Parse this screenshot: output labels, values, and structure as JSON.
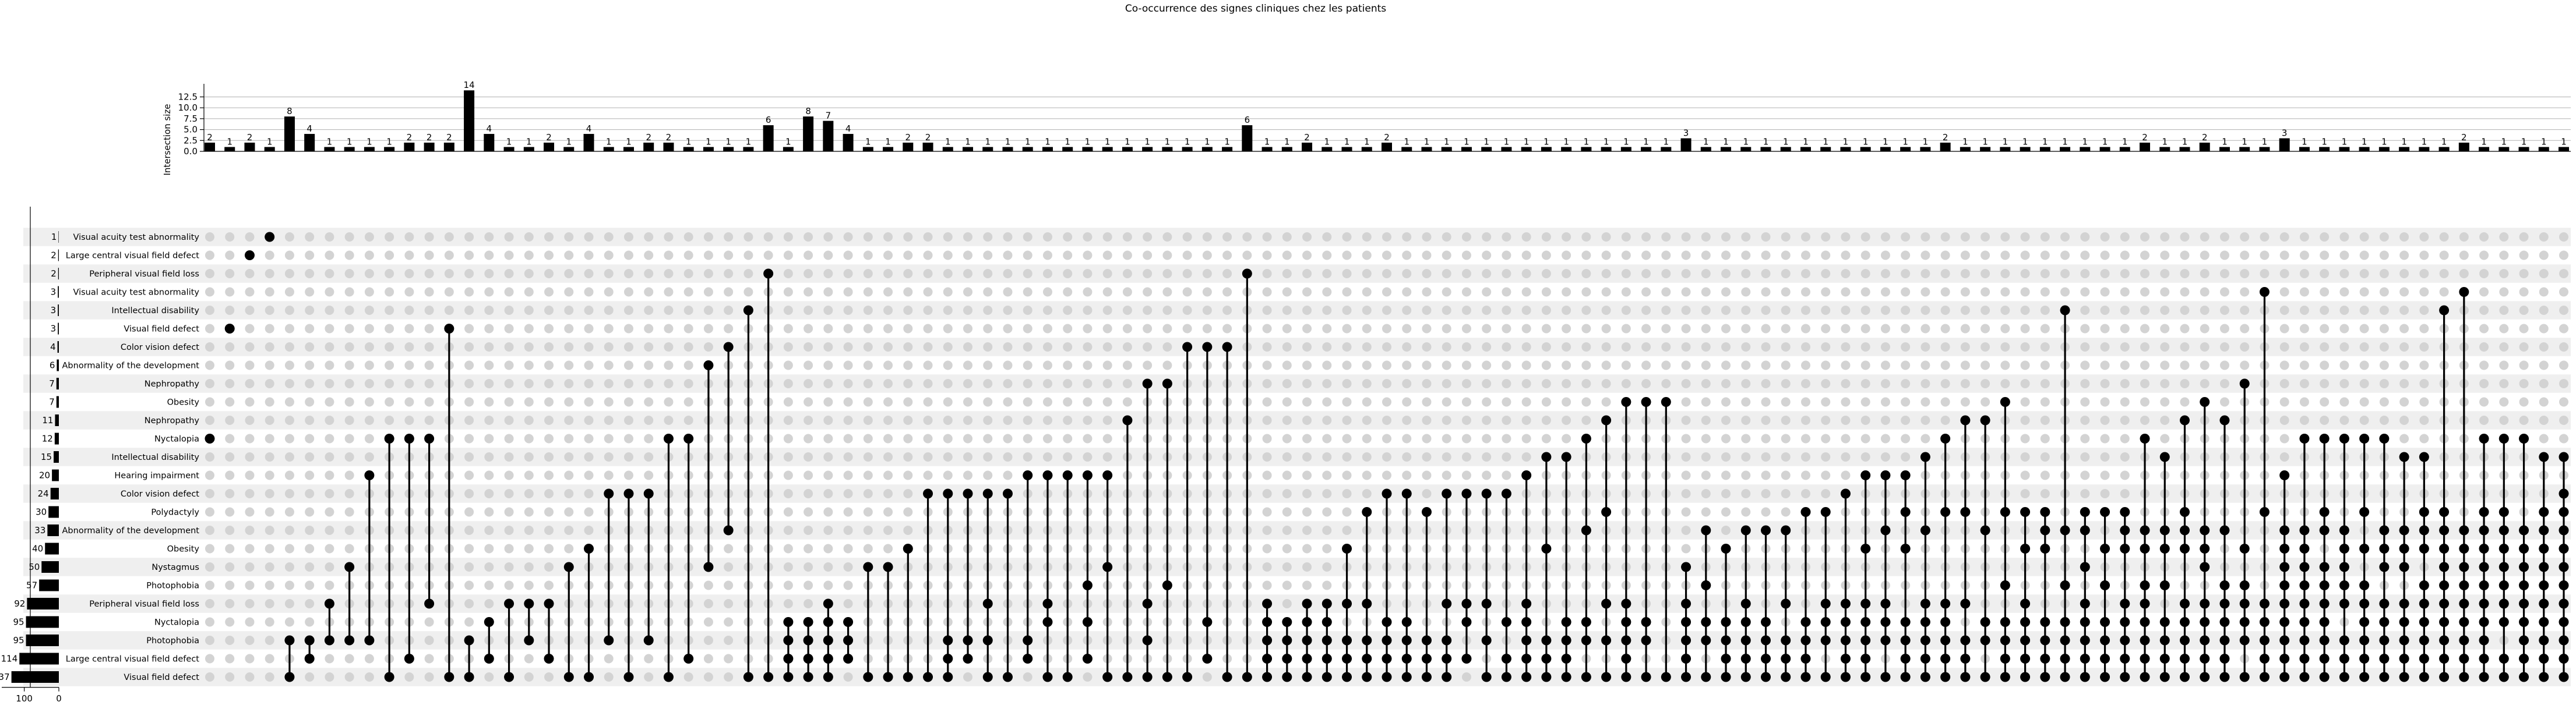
{
  "chart_data": {
    "type": "upset",
    "title": "Co-occurrence des signes cliniques chez les patients",
    "ylabel": "Intersection size",
    "ylim": [
      0,
      14.7
    ],
    "yticks": [
      0.0,
      2.5,
      5.0,
      7.5,
      10.0,
      12.5
    ],
    "ytick_labels": [
      "0.0",
      "2.5",
      "5.0",
      "7.5",
      "10.0",
      "12.5"
    ],
    "set_size_ticks": [
      "100",
      "0"
    ],
    "grid": true,
    "sets": [
      {
        "name": "Visual acuity test abnormality",
        "size": 1
      },
      {
        "name": "Large central visual field defect",
        "size": 2
      },
      {
        "name": "Peripheral visual field loss",
        "size": 2
      },
      {
        "name": "Visual acuity test abnormality",
        "size": 3
      },
      {
        "name": "Intellectual disability",
        "size": 3
      },
      {
        "name": "Visual field defect",
        "size": 3
      },
      {
        "name": "Color vision defect",
        "size": 4
      },
      {
        "name": "Abnormality of the development",
        "size": 6
      },
      {
        "name": "Nephropathy",
        "size": 7
      },
      {
        "name": "Obesity",
        "size": 7
      },
      {
        "name": "Nephropathy",
        "size": 11
      },
      {
        "name": "Nyctalopia",
        "size": 12
      },
      {
        "name": "Intellectual disability",
        "size": 15
      },
      {
        "name": "Hearing impairment",
        "size": 20
      },
      {
        "name": "Color vision defect",
        "size": 24
      },
      {
        "name": "Polydactyly",
        "size": 30
      },
      {
        "name": "Abnormality of the development",
        "size": 33
      },
      {
        "name": "Obesity",
        "size": 40
      },
      {
        "name": "Nystagmus",
        "size": 50
      },
      {
        "name": "Photophobia",
        "size": 57
      },
      {
        "name": "Peripheral visual field loss",
        "size": 92
      },
      {
        "name": "Nyctalopia",
        "size": 95
      },
      {
        "name": "Photophobia",
        "size": 95
      },
      {
        "name": "Large central visual field defect",
        "size": 114
      },
      {
        "name": "Visual field defect",
        "size": 137
      }
    ],
    "intersections": [
      {
        "size": 2,
        "sets": [
          11
        ]
      },
      {
        "size": 1,
        "sets": [
          5
        ]
      },
      {
        "size": 2,
        "sets": [
          1
        ]
      },
      {
        "size": 1,
        "sets": [
          0
        ]
      },
      {
        "size": 8,
        "sets": [
          22,
          24
        ]
      },
      {
        "size": 4,
        "sets": [
          22,
          23
        ]
      },
      {
        "size": 1,
        "sets": [
          20,
          22
        ]
      },
      {
        "size": 1,
        "sets": [
          18,
          22
        ]
      },
      {
        "size": 1,
        "sets": [
          13,
          22
        ]
      },
      {
        "size": 1,
        "sets": [
          11,
          24
        ]
      },
      {
        "size": 2,
        "sets": [
          11,
          23
        ]
      },
      {
        "size": 2,
        "sets": [
          11,
          20
        ]
      },
      {
        "size": 2,
        "sets": [
          5,
          24
        ]
      },
      {
        "size": 14,
        "sets": [
          22,
          24
        ]
      },
      {
        "size": 4,
        "sets": [
          21,
          23
        ]
      },
      {
        "size": 1,
        "sets": [
          20,
          24
        ]
      },
      {
        "size": 1,
        "sets": [
          20,
          22
        ]
      },
      {
        "size": 2,
        "sets": [
          20,
          23
        ]
      },
      {
        "size": 1,
        "sets": [
          18,
          24
        ]
      },
      {
        "size": 4,
        "sets": [
          17,
          24
        ]
      },
      {
        "size": 1,
        "sets": [
          14,
          22
        ]
      },
      {
        "size": 1,
        "sets": [
          14,
          24
        ]
      },
      {
        "size": 2,
        "sets": [
          14,
          22
        ]
      },
      {
        "size": 2,
        "sets": [
          11,
          24
        ]
      },
      {
        "size": 1,
        "sets": [
          11,
          23
        ]
      },
      {
        "size": 1,
        "sets": [
          7,
          18
        ]
      },
      {
        "size": 1,
        "sets": [
          6,
          16
        ]
      },
      {
        "size": 1,
        "sets": [
          4,
          24
        ]
      },
      {
        "size": 6,
        "sets": [
          2,
          24
        ]
      },
      {
        "size": 1,
        "sets": [
          21,
          22,
          23,
          24
        ]
      },
      {
        "size": 8,
        "sets": [
          21,
          22,
          23,
          24
        ]
      },
      {
        "size": 7,
        "sets": [
          20,
          21,
          22,
          23,
          24
        ]
      },
      {
        "size": 4,
        "sets": [
          21,
          22,
          23
        ]
      },
      {
        "size": 1,
        "sets": [
          18,
          24
        ]
      },
      {
        "size": 1,
        "sets": [
          18,
          24
        ]
      },
      {
        "size": 2,
        "sets": [
          17,
          24
        ]
      },
      {
        "size": 2,
        "sets": [
          14,
          24
        ]
      },
      {
        "size": 1,
        "sets": [
          14,
          22,
          23,
          24
        ]
      },
      {
        "size": 1,
        "sets": [
          14,
          22,
          23
        ]
      },
      {
        "size": 1,
        "sets": [
          14,
          20,
          22,
          24
        ]
      },
      {
        "size": 1,
        "sets": [
          14,
          24
        ]
      },
      {
        "size": 1,
        "sets": [
          13,
          22,
          23
        ]
      },
      {
        "size": 1,
        "sets": [
          13,
          20,
          21,
          24
        ]
      },
      {
        "size": 1,
        "sets": [
          13,
          24
        ]
      },
      {
        "size": 1,
        "sets": [
          13,
          19,
          21,
          23
        ]
      },
      {
        "size": 1,
        "sets": [
          13,
          18,
          24
        ]
      },
      {
        "size": 1,
        "sets": [
          10,
          24
        ]
      },
      {
        "size": 1,
        "sets": [
          8,
          20,
          22,
          24
        ]
      },
      {
        "size": 1,
        "sets": [
          8,
          19,
          24
        ]
      },
      {
        "size": 1,
        "sets": [
          6,
          24
        ]
      },
      {
        "size": 1,
        "sets": [
          6,
          21,
          23
        ]
      },
      {
        "size": 1,
        "sets": [
          6,
          24
        ]
      },
      {
        "size": 6,
        "sets": [
          2,
          24
        ]
      },
      {
        "size": 1,
        "sets": [
          20,
          21,
          22,
          23,
          24
        ]
      },
      {
        "size": 1,
        "sets": [
          21,
          22,
          23,
          24
        ]
      },
      {
        "size": 2,
        "sets": [
          20,
          21,
          22,
          23,
          24
        ]
      },
      {
        "size": 1,
        "sets": [
          20,
          21,
          22,
          23,
          24
        ]
      },
      {
        "size": 1,
        "sets": [
          17,
          20,
          22,
          23,
          24
        ]
      },
      {
        "size": 1,
        "sets": [
          15,
          20,
          22,
          23,
          24
        ]
      },
      {
        "size": 2,
        "sets": [
          14,
          21,
          22,
          23,
          24
        ]
      },
      {
        "size": 1,
        "sets": [
          14,
          21,
          22,
          23,
          24
        ]
      },
      {
        "size": 1,
        "sets": [
          15,
          22,
          23,
          24
        ]
      },
      {
        "size": 1,
        "sets": [
          14,
          20,
          22,
          23,
          24
        ]
      },
      {
        "size": 1,
        "sets": [
          14,
          20,
          21,
          23
        ]
      },
      {
        "size": 1,
        "sets": [
          14,
          20,
          22,
          24
        ]
      },
      {
        "size": 1,
        "sets": [
          14,
          21,
          23,
          24
        ]
      },
      {
        "size": 1,
        "sets": [
          13,
          20,
          21,
          22,
          23,
          24
        ]
      },
      {
        "size": 1,
        "sets": [
          12,
          17,
          22,
          23,
          24
        ]
      },
      {
        "size": 1,
        "sets": [
          12,
          21,
          22,
          23,
          24
        ]
      },
      {
        "size": 1,
        "sets": [
          11,
          16,
          21,
          22,
          24
        ]
      },
      {
        "size": 1,
        "sets": [
          10,
          15,
          20,
          22,
          24
        ]
      },
      {
        "size": 1,
        "sets": [
          9,
          20,
          21,
          22,
          23,
          24
        ]
      },
      {
        "size": 1,
        "sets": [
          9,
          21,
          22,
          24
        ]
      },
      {
        "size": 1,
        "sets": [
          9,
          24
        ]
      },
      {
        "size": 3,
        "sets": [
          18,
          20,
          21,
          22,
          23,
          24
        ]
      },
      {
        "size": 1,
        "sets": [
          16,
          19,
          21,
          22,
          24
        ]
      },
      {
        "size": 1,
        "sets": [
          17,
          21,
          22,
          23,
          24
        ]
      },
      {
        "size": 1,
        "sets": [
          16,
          20,
          21,
          22,
          23,
          24
        ]
      },
      {
        "size": 1,
        "sets": [
          16,
          21,
          22,
          23,
          24
        ]
      },
      {
        "size": 1,
        "sets": [
          16,
          20,
          22,
          23,
          24
        ]
      },
      {
        "size": 1,
        "sets": [
          15,
          21,
          22,
          23,
          24
        ]
      },
      {
        "size": 1,
        "sets": [
          15,
          20,
          21,
          22,
          24
        ]
      },
      {
        "size": 1,
        "sets": [
          14,
          20,
          21,
          22,
          23,
          24
        ]
      },
      {
        "size": 1,
        "sets": [
          13,
          17,
          20,
          21,
          22,
          23,
          24
        ]
      },
      {
        "size": 1,
        "sets": [
          13,
          16,
          20,
          21,
          22,
          24
        ]
      },
      {
        "size": 1,
        "sets": [
          13,
          15,
          17,
          21,
          22,
          23,
          24
        ]
      },
      {
        "size": 1,
        "sets": [
          12,
          16,
          20,
          21,
          22,
          23,
          24
        ]
      },
      {
        "size": 2,
        "sets": [
          11,
          15,
          20,
          21,
          22,
          23,
          24
        ]
      },
      {
        "size": 1,
        "sets": [
          10,
          15,
          20,
          22,
          23,
          24
        ]
      },
      {
        "size": 1,
        "sets": [
          10,
          16,
          21,
          22,
          24
        ]
      },
      {
        "size": 1,
        "sets": [
          9,
          15,
          19,
          21,
          22,
          23,
          24
        ]
      },
      {
        "size": 1,
        "sets": [
          15,
          17,
          20,
          21,
          22,
          23,
          24
        ]
      },
      {
        "size": 1,
        "sets": [
          15,
          16,
          17,
          21,
          22,
          23,
          24
        ]
      },
      {
        "size": 1,
        "sets": [
          4,
          16,
          19,
          21,
          22,
          23,
          24
        ]
      },
      {
        "size": 1,
        "sets": [
          15,
          16,
          18,
          20,
          21,
          22,
          23,
          24
        ]
      },
      {
        "size": 1,
        "sets": [
          15,
          17,
          19,
          21,
          22,
          23,
          24
        ]
      },
      {
        "size": 1,
        "sets": [
          15,
          16,
          17,
          20,
          21,
          22,
          23,
          24
        ]
      },
      {
        "size": 2,
        "sets": [
          11,
          16,
          17,
          19,
          20,
          21,
          22,
          23,
          24
        ]
      },
      {
        "size": 1,
        "sets": [
          12,
          16,
          17,
          19,
          21,
          22,
          23,
          24
        ]
      },
      {
        "size": 1,
        "sets": [
          10,
          15,
          16,
          17,
          20,
          21,
          22,
          23,
          24
        ]
      },
      {
        "size": 2,
        "sets": [
          9,
          16,
          17,
          18,
          20,
          21,
          22,
          23,
          24
        ]
      },
      {
        "size": 1,
        "sets": [
          10,
          16,
          19,
          20,
          21,
          22,
          23,
          24
        ]
      },
      {
        "size": 1,
        "sets": [
          8,
          17,
          19,
          20,
          21,
          22,
          24
        ]
      },
      {
        "size": 1,
        "sets": [
          3,
          15,
          20,
          21,
          22,
          23,
          24
        ]
      },
      {
        "size": 3,
        "sets": [
          13,
          16,
          17,
          18,
          19,
          20,
          21,
          22,
          23,
          24
        ]
      },
      {
        "size": 1,
        "sets": [
          11,
          16,
          17,
          18,
          19,
          20,
          21,
          22,
          23,
          24
        ]
      },
      {
        "size": 1,
        "sets": [
          11,
          15,
          16,
          18,
          19,
          20,
          21,
          22,
          23,
          24
        ]
      },
      {
        "size": 1,
        "sets": [
          11,
          16,
          17,
          18,
          19,
          20,
          22,
          23,
          24
        ]
      },
      {
        "size": 1,
        "sets": [
          11,
          15,
          17,
          19,
          20,
          21,
          22,
          23,
          24
        ]
      },
      {
        "size": 1,
        "sets": [
          11,
          16,
          17,
          18,
          20,
          21,
          22,
          23,
          24
        ]
      },
      {
        "size": 1,
        "sets": [
          12,
          16,
          17,
          18,
          20,
          21,
          22,
          23,
          24
        ]
      },
      {
        "size": 1,
        "sets": [
          12,
          15,
          16,
          17,
          19,
          20,
          21,
          22,
          23,
          24
        ]
      },
      {
        "size": 1,
        "sets": [
          4,
          15,
          16,
          17,
          18,
          19,
          20,
          21,
          22,
          23,
          24
        ]
      },
      {
        "size": 2,
        "sets": [
          3,
          16,
          17,
          18,
          19,
          20,
          21,
          22,
          23,
          24
        ]
      },
      {
        "size": 1,
        "sets": [
          11,
          15,
          16,
          17,
          18,
          19,
          20,
          21,
          22,
          23,
          24
        ]
      },
      {
        "size": 1,
        "sets": [
          11,
          15,
          16,
          17,
          18,
          19,
          20,
          21,
          23,
          24
        ]
      },
      {
        "size": 1,
        "sets": [
          11,
          16,
          17,
          18,
          19,
          20,
          21,
          22,
          23,
          24
        ]
      },
      {
        "size": 1,
        "sets": [
          12,
          15,
          16,
          17,
          18,
          19,
          20,
          21,
          22,
          23,
          24
        ]
      },
      {
        "size": 1,
        "sets": [
          12,
          14,
          15,
          16,
          17,
          18,
          19,
          20,
          21,
          22,
          23,
          24
        ]
      }
    ]
  }
}
